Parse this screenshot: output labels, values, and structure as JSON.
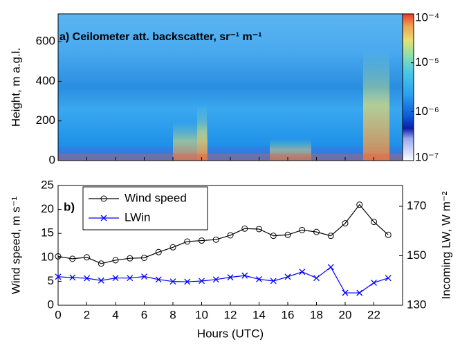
{
  "chart_data": [
    {
      "type": "heatmap",
      "title": "a) Ceilometer att. backscatter, sr⁻¹ m⁻¹",
      "ylabel": "Height, m a.g.l.",
      "xlim": [
        0,
        24
      ],
      "ylim": [
        0,
        740
      ],
      "yticks": [
        0,
        200,
        400,
        600
      ],
      "colorbar": {
        "log": true,
        "lim": [
          1e-07,
          0.0001
        ],
        "ticks": [
          {
            "value": 1e-07,
            "label": "10⁻⁷"
          },
          {
            "value": 1e-06,
            "label": "10⁻⁶"
          },
          {
            "value": 1e-05,
            "label": "10⁻⁵"
          },
          {
            "value": 0.0001,
            "label": "10⁻⁴"
          }
        ]
      }
    },
    {
      "type": "line",
      "panel_label": "b)",
      "xlabel": "Hours (UTC)",
      "ylabel": "Wind speed, m s⁻¹",
      "y2label": "Incoming LW, W m⁻²",
      "x": [
        0,
        1,
        2,
        3,
        4,
        5,
        6,
        7,
        8,
        9,
        10,
        11,
        12,
        13,
        14,
        15,
        16,
        17,
        18,
        19,
        20,
        21,
        22,
        23
      ],
      "xlim": [
        0,
        24
      ],
      "xticks": [
        0,
        2,
        4,
        6,
        8,
        10,
        12,
        14,
        16,
        18,
        20,
        22
      ],
      "ylim": [
        0,
        25
      ],
      "yticks": [
        0,
        5,
        10,
        15,
        20,
        25
      ],
      "y2lim": [
        130,
        178.4
      ],
      "y2ticks": [
        130,
        150,
        170
      ],
      "legend": "upper left",
      "series": [
        {
          "name": "Wind speed",
          "color": "#000000",
          "marker": "o",
          "values": [
            10.2,
            9.7,
            10.0,
            8.7,
            9.4,
            9.8,
            9.9,
            11.1,
            12.1,
            13.3,
            13.5,
            13.7,
            14.6,
            16.0,
            15.9,
            14.5,
            14.7,
            15.7,
            15.3,
            14.5,
            17.1,
            21.0,
            17.4,
            14.7
          ]
        },
        {
          "name": "LWin",
          "color": "#0000ff",
          "marker": "x",
          "axis": "y2",
          "values": [
            141.5,
            141.2,
            140.9,
            140.0,
            141.0,
            141.0,
            141.6,
            140.4,
            139.6,
            139.5,
            139.8,
            140.4,
            141.3,
            142.0,
            140.5,
            139.8,
            141.5,
            143.5,
            141.0,
            145.4,
            135.0,
            135.0,
            139.1,
            141.0
          ]
        }
      ]
    }
  ]
}
